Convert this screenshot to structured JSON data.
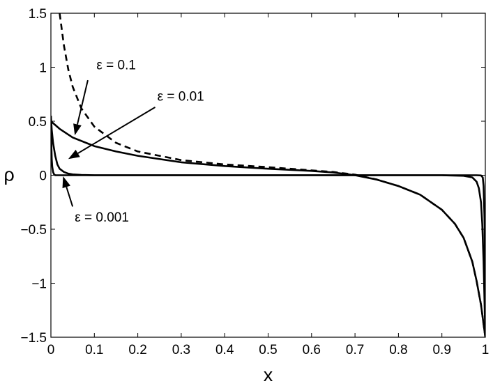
{
  "chart_data": {
    "type": "line",
    "title": "",
    "xlabel": "x",
    "ylabel": "ρ",
    "xlim": [
      0,
      1
    ],
    "ylim": [
      -1.5,
      1.5
    ],
    "grid": false,
    "x_ticks": [
      0,
      0.1,
      0.2,
      0.3,
      0.4,
      0.5,
      0.6,
      0.7,
      0.8,
      0.9,
      1
    ],
    "x_tick_labels": [
      "0",
      "0.1",
      "0.2",
      "0.3",
      "0.4",
      "0.5",
      "0.6",
      "0.7",
      "0.8",
      "0.9",
      "1"
    ],
    "y_ticks": [
      -1.5,
      -1,
      -0.5,
      0,
      0.5,
      1,
      1.5
    ],
    "y_tick_labels": [
      "−1.5",
      "−1",
      "−0.5",
      "0",
      "0.5",
      "1",
      "1.5"
    ],
    "series": [
      {
        "style": "dashed",
        "x": [
          0.02,
          0.03,
          0.04,
          0.05,
          0.07,
          0.1,
          0.15,
          0.2,
          0.3,
          0.4,
          0.5,
          0.6,
          0.65,
          0.7,
          0.75,
          0.8,
          0.85,
          0.9,
          0.93,
          0.95,
          0.97,
          0.98,
          0.99,
          1.0
        ],
        "y": [
          1.5,
          1.2,
          0.98,
          0.82,
          0.62,
          0.45,
          0.3,
          0.22,
          0.14,
          0.1,
          0.075,
          0.045,
          0.03,
          0.005,
          -0.04,
          -0.1,
          -0.18,
          -0.32,
          -0.45,
          -0.58,
          -0.8,
          -0.98,
          -1.2,
          -1.5
        ]
      },
      {
        "style": "solid",
        "x": [
          0.0,
          0.02,
          0.05,
          0.1,
          0.15,
          0.2,
          0.3,
          0.4,
          0.5,
          0.6,
          0.65,
          0.7,
          0.75,
          0.8,
          0.85,
          0.9,
          0.93,
          0.95,
          0.97,
          0.98,
          0.99,
          1.0
        ],
        "y": [
          0.5,
          0.43,
          0.35,
          0.27,
          0.22,
          0.18,
          0.12,
          0.085,
          0.06,
          0.04,
          0.025,
          0.0,
          -0.04,
          -0.1,
          -0.18,
          -0.32,
          -0.45,
          -0.58,
          -0.8,
          -0.98,
          -1.2,
          -1.5
        ]
      },
      {
        "style": "solid",
        "x": [
          0.0,
          0.002,
          0.005,
          0.01,
          0.015,
          0.02,
          0.03,
          0.04,
          0.05,
          0.07,
          0.1,
          0.15,
          0.2,
          0.9,
          0.95,
          0.97,
          0.98,
          0.985,
          0.99,
          0.993,
          0.996,
          1.0
        ],
        "y": [
          0.55,
          0.42,
          0.3,
          0.18,
          0.1,
          0.06,
          0.03,
          0.015,
          0.008,
          0.003,
          0.0,
          0.0,
          0.0,
          0.0,
          -0.005,
          -0.02,
          -0.06,
          -0.12,
          -0.25,
          -0.45,
          -0.8,
          -1.5
        ]
      },
      {
        "style": "solid",
        "x": [
          0.0,
          0.001,
          0.002,
          0.003,
          0.005,
          0.007,
          0.01,
          0.015,
          0.02,
          0.98,
          0.99,
          0.994,
          0.996,
          0.998,
          0.999,
          1.0
        ],
        "y": [
          0.55,
          0.3,
          0.15,
          0.08,
          0.03,
          0.01,
          0.0,
          0.0,
          0.0,
          0.0,
          -0.002,
          -0.02,
          -0.1,
          -0.4,
          -0.8,
          -1.5
        ]
      }
    ],
    "annotations": [
      {
        "text": "ε = 0.1",
        "text_x": 0.105,
        "text_y": 0.98,
        "arrow_from": [
          0.085,
          0.88
        ],
        "arrow_to": [
          0.055,
          0.37
        ]
      },
      {
        "text": "ε = 0.01",
        "text_x": 0.245,
        "text_y": 0.69,
        "arrow_from": [
          0.24,
          0.63
        ],
        "arrow_to": [
          0.04,
          0.15
        ]
      },
      {
        "text": "ε = 0.001",
        "text_x": 0.055,
        "text_y": -0.43,
        "arrow_from": [
          0.05,
          -0.29
        ],
        "arrow_to": [
          0.028,
          -0.01
        ]
      }
    ]
  }
}
